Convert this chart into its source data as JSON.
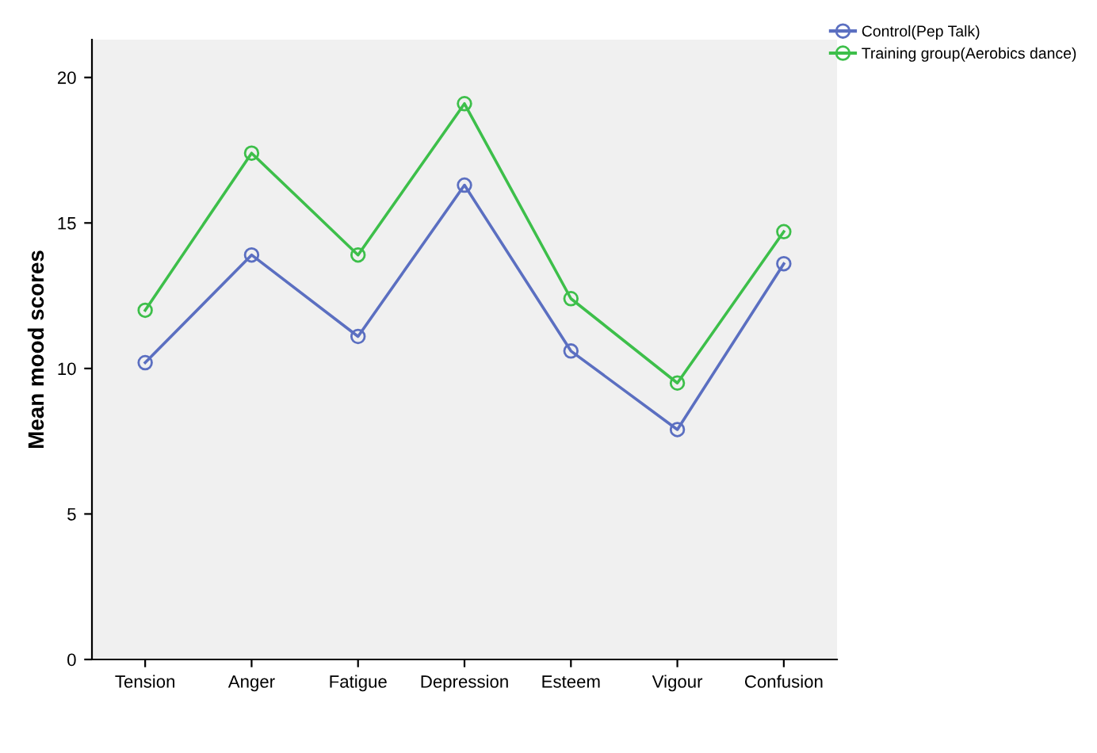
{
  "chart_data": {
    "type": "line",
    "ylabel": "Mean mood scores",
    "categories": [
      "Tension",
      "Anger",
      "Fatigue",
      "Depression",
      "Esteem",
      "Vigour",
      "Confusion"
    ],
    "series": [
      {
        "name": "Control(Pep Talk)",
        "color": "#5b6fc1",
        "values": [
          10.2,
          13.9,
          11.1,
          16.3,
          10.6,
          7.9,
          13.6
        ]
      },
      {
        "name": "Training group(Aerobics dance)",
        "color": "#3dbf4a",
        "values": [
          12.0,
          17.4,
          13.9,
          19.1,
          12.4,
          9.5,
          14.7
        ]
      }
    ],
    "ylim": [
      0,
      21.3
    ],
    "yticks": [
      0,
      5,
      10,
      15,
      20
    ],
    "grid": false,
    "legend": "top right",
    "marker": "circle",
    "line_style": "solid"
  }
}
